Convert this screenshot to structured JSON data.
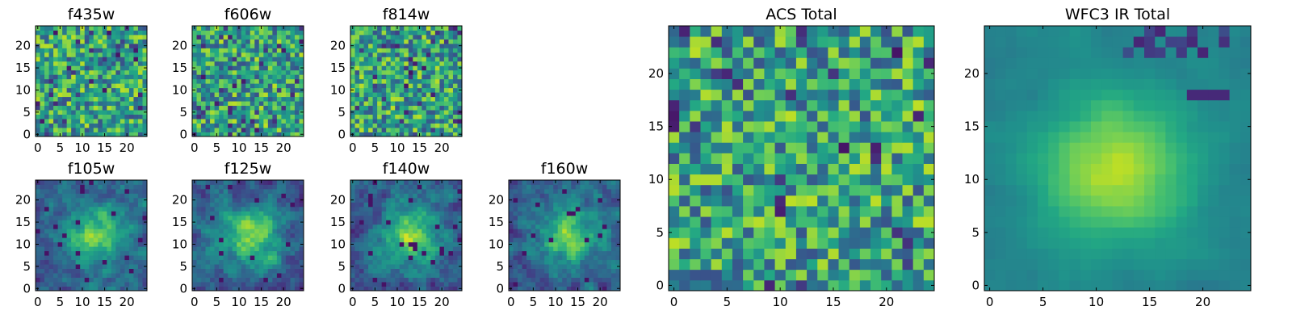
{
  "figure": {
    "background": "#ffffff",
    "colormap": "viridis"
  },
  "chart_data": [
    {
      "type": "heatmap",
      "title": "f435w",
      "x_ticks": [
        0,
        5,
        10,
        15,
        20
      ],
      "y_ticks": [
        0,
        5,
        10,
        15,
        20
      ],
      "xlim": [
        -0.5,
        24.5
      ],
      "ylim": [
        -0.5,
        24.5
      ],
      "grid": false,
      "style": "noise",
      "seed": 11
    },
    {
      "type": "heatmap",
      "title": "f606w",
      "x_ticks": [
        0,
        5,
        10,
        15,
        20
      ],
      "y_ticks": [
        0,
        5,
        10,
        15,
        20
      ],
      "xlim": [
        -0.5,
        24.5
      ],
      "ylim": [
        -0.5,
        24.5
      ],
      "grid": false,
      "style": "noise",
      "seed": 23
    },
    {
      "type": "heatmap",
      "title": "f814w",
      "x_ticks": [
        0,
        5,
        10,
        15,
        20
      ],
      "y_ticks": [
        0,
        5,
        10,
        15,
        20
      ],
      "xlim": [
        -0.5,
        24.5
      ],
      "ylim": [
        -0.5,
        24.5
      ],
      "grid": false,
      "style": "noise",
      "seed": 37
    },
    {
      "type": "heatmap",
      "title": "f105w",
      "x_ticks": [
        0,
        5,
        10,
        15,
        20
      ],
      "y_ticks": [
        0,
        5,
        10,
        15,
        20
      ],
      "xlim": [
        -0.5,
        24.5
      ],
      "ylim": [
        -0.5,
        24.5
      ],
      "grid": false,
      "style": "source",
      "seed": 41
    },
    {
      "type": "heatmap",
      "title": "f125w",
      "x_ticks": [
        0,
        5,
        10,
        15,
        20
      ],
      "y_ticks": [
        0,
        5,
        10,
        15,
        20
      ],
      "xlim": [
        -0.5,
        24.5
      ],
      "ylim": [
        -0.5,
        24.5
      ],
      "grid": false,
      "style": "source",
      "seed": 53
    },
    {
      "type": "heatmap",
      "title": "f140w",
      "x_ticks": [
        0,
        5,
        10,
        15,
        20
      ],
      "y_ticks": [
        0,
        5,
        10,
        15,
        20
      ],
      "xlim": [
        -0.5,
        24.5
      ],
      "ylim": [
        -0.5,
        24.5
      ],
      "grid": false,
      "style": "source",
      "seed": 67
    },
    {
      "type": "heatmap",
      "title": "f160w",
      "x_ticks": [
        0,
        5,
        10,
        15,
        20
      ],
      "y_ticks": [
        0,
        5,
        10,
        15,
        20
      ],
      "xlim": [
        -0.5,
        24.5
      ],
      "ylim": [
        -0.5,
        24.5
      ],
      "grid": false,
      "style": "source",
      "seed": 79
    },
    {
      "type": "heatmap",
      "title": "ACS Total",
      "x_ticks": [
        0,
        5,
        10,
        15,
        20
      ],
      "y_ticks": [
        0,
        5,
        10,
        15,
        20
      ],
      "xlim": [
        -0.5,
        24.5
      ],
      "ylim": [
        -0.5,
        24.5
      ],
      "grid": false,
      "style": "noise",
      "seed": 97
    },
    {
      "type": "heatmap",
      "title": "WFC3 IR Total",
      "x_ticks": [
        0,
        5,
        10,
        15,
        20
      ],
      "y_ticks": [
        0,
        5,
        10,
        15,
        20
      ],
      "xlim": [
        -0.5,
        24.5
      ],
      "ylim": [
        -0.5,
        24.5
      ],
      "grid": false,
      "style": "smooth",
      "seed": 101
    }
  ]
}
